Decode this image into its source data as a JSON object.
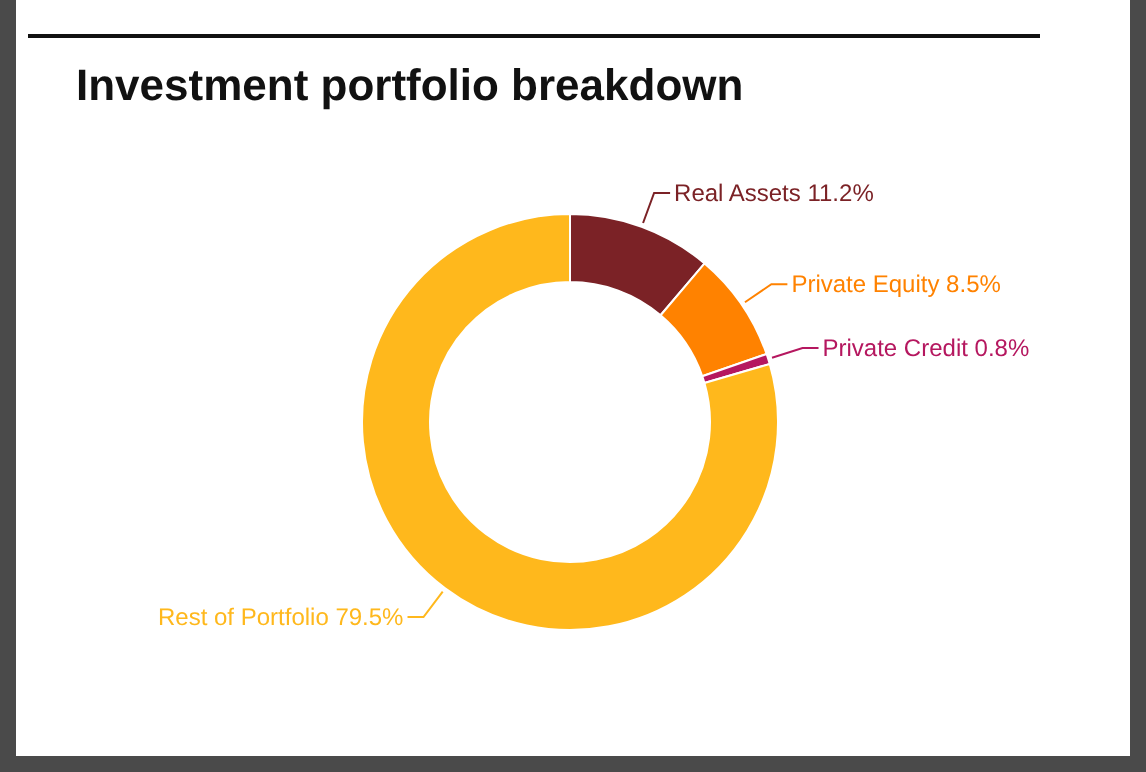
{
  "chart_data": {
    "type": "donut",
    "title": "Investment portfolio breakdown",
    "categories": [
      "Real Assets",
      "Private Equity",
      "Private Credit",
      "Rest of Portfolio"
    ],
    "values": [
      11.2,
      8.5,
      0.8,
      79.5
    ],
    "value_labels": [
      "11.2%",
      "8.5%",
      "0.8%",
      "79.5%"
    ],
    "colors": [
      "#7b2226",
      "#ff8200",
      "#b5175f",
      "#ffb81c"
    ]
  }
}
